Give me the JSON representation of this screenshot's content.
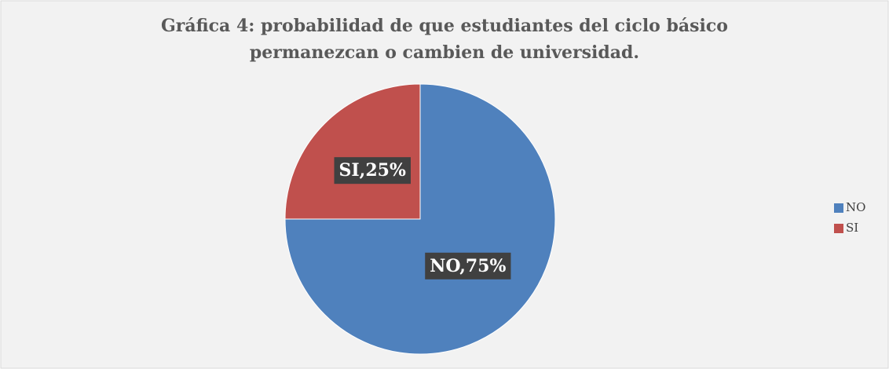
{
  "chart_data": {
    "type": "pie",
    "title": [
      "Gráfica 4: probabilidad de que estudiantes del ciclo básico",
      "permanezcan o cambien de universidad."
    ],
    "categories": [
      "NO",
      "SI"
    ],
    "values": [
      75,
      25
    ],
    "value_labels": [
      "NO,75%",
      "SI,25%"
    ],
    "colors": [
      "#4f81bd",
      "#c0504d"
    ],
    "legend": "right"
  }
}
